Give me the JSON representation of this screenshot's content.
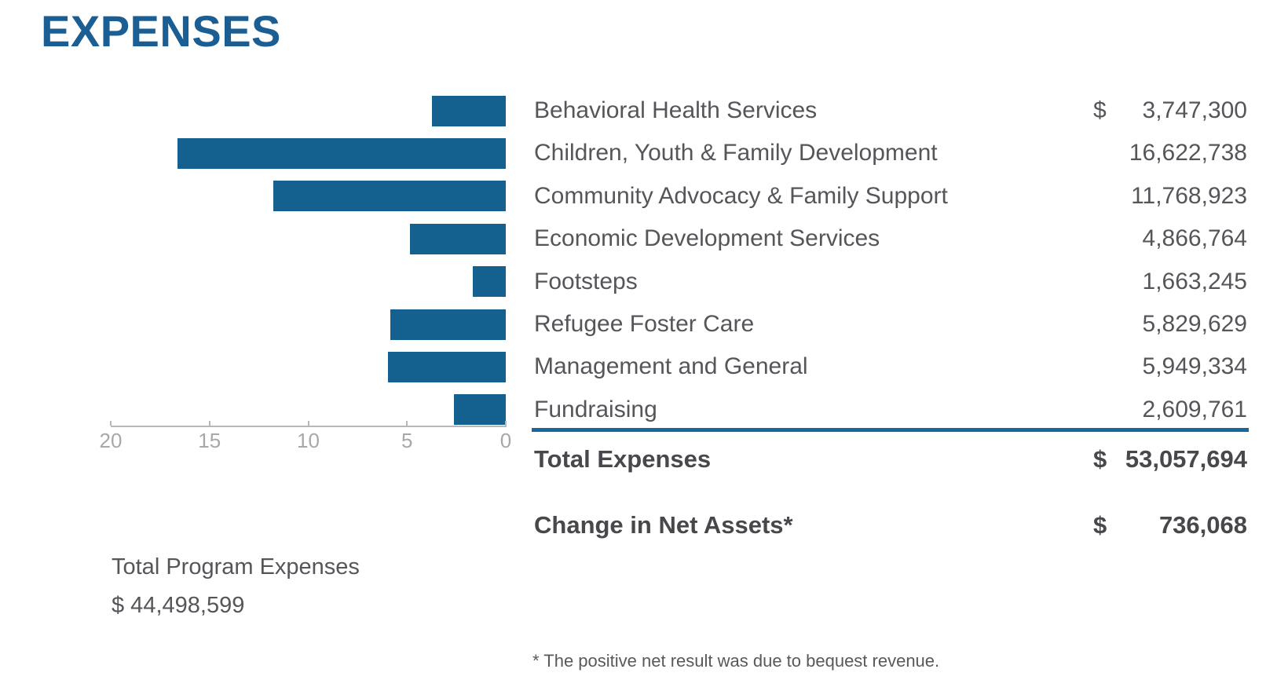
{
  "title": "EXPENSES",
  "colors": {
    "bar_blue": "#14608f",
    "title_blue": "#1b5e93",
    "divider_blue": "#1a689b",
    "text_gray": "#54565a",
    "axis_gray": "#a6a8ab"
  },
  "chart_data": {
    "type": "bar",
    "orientation": "horizontal",
    "title": "EXPENSES",
    "xlabel": "",
    "ylabel": "",
    "axis_unit": "millions of dollars",
    "xlim": [
      0,
      20
    ],
    "x_ticks": [
      20,
      15,
      10,
      5,
      0
    ],
    "axis_reversed": true,
    "grid": false,
    "legend": "none",
    "categories": [
      "Behavioral Health Services",
      "Children, Youth & Family Development",
      "Community Advocacy & Family Support",
      "Economic Development Services",
      "Footsteps",
      "Refugee Foster Care",
      "Management and General",
      "Fundraising"
    ],
    "values": [
      3747300,
      16622738,
      11768923,
      4866764,
      1663245,
      5829629,
      5949334,
      2609761
    ]
  },
  "table": {
    "rows": [
      {
        "label": "Behavioral Health Services",
        "currency": "$",
        "value": "3,747,300"
      },
      {
        "label": "Children, Youth & Family Development",
        "currency": "",
        "value": "16,622,738"
      },
      {
        "label": "Community Advocacy & Family Support",
        "currency": "",
        "value": "11,768,923"
      },
      {
        "label": "Economic Development Services",
        "currency": "",
        "value": "4,866,764"
      },
      {
        "label": "Footsteps",
        "currency": "",
        "value": "1,663,245"
      },
      {
        "label": "Refugee Foster Care",
        "currency": "",
        "value": "5,829,629"
      },
      {
        "label": "Management and General",
        "currency": "",
        "value": "5,949,334"
      },
      {
        "label": "Fundraising",
        "currency": "",
        "value": "2,609,761"
      }
    ],
    "total": {
      "label": "Total Expenses",
      "currency": "$",
      "value": "53,057,694"
    },
    "change": {
      "label": "Change in Net Assets*",
      "currency": "$",
      "value": "736,068"
    }
  },
  "program_total": {
    "label": "Total Program Expenses",
    "value": "$ 44,498,599"
  },
  "footnote": "* The positive net result was due to bequest revenue."
}
